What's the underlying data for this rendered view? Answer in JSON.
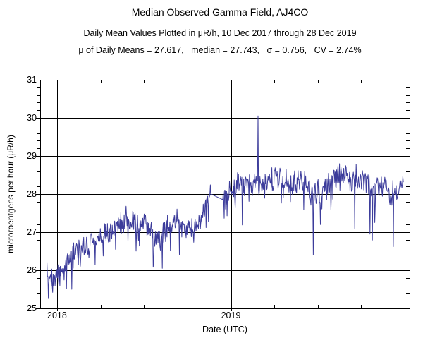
{
  "window": {
    "background": "#ffffff",
    "text_color": "#000000"
  },
  "header": {
    "title": "Median Observed Gamma Field, AJ4CO",
    "subtitle": "Daily Mean Values Plotted in μR/h, 10 Dec 2017 through 28 Dec 2019",
    "stats_line": "μ of Daily Means = 27.617,   median = 27.743,   σ = 0.756,   CV = 2.74%"
  },
  "chart_data": {
    "type": "line",
    "title": "Median Observed Gamma Field, AJ4CO",
    "subtitle": "Daily Mean Values Plotted in μR/h, 10 Dec 2017 through 28 Dec 2019",
    "xlabel": "Date (UTC)",
    "ylabel": "microroentgens per hour (μR/h)",
    "legend": "none",
    "grid": true,
    "stats": {
      "mu_of_daily_means": 27.617,
      "median": 27.743,
      "sigma": 0.756,
      "cv_percent": 2.74
    },
    "x_axis": {
      "range": [
        2017.903,
        2020.028
      ],
      "major_ticks": [
        {
          "value": 2018,
          "label": "2018"
        },
        {
          "value": 2019,
          "label": "2019"
        }
      ],
      "minor_tick_interval_years": 0.25,
      "gridlines": [
        2018,
        2019
      ]
    },
    "y_axis": {
      "range": [
        25,
        31
      ],
      "tick_labels": [
        25,
        26,
        27,
        28,
        29,
        30,
        31
      ],
      "minor_tick_interval": 0.2,
      "gridlines": [
        26,
        27,
        28,
        29,
        30
      ]
    },
    "series": {
      "name": "daily-mean-gamma",
      "color": "#3c3c9b",
      "t_start": 2017.942,
      "t_end": 2019.992,
      "n_points": 749,
      "trend_anchors": [
        [
          2017.942,
          26.0
        ],
        [
          2017.96,
          25.85
        ],
        [
          2017.985,
          25.75
        ],
        [
          2018.0,
          26.0
        ],
        [
          2018.01,
          25.85
        ],
        [
          2018.03,
          26.05
        ],
        [
          2018.06,
          26.25
        ],
        [
          2018.1,
          26.45
        ],
        [
          2018.14,
          26.55
        ],
        [
          2018.18,
          26.65
        ],
        [
          2018.22,
          26.8
        ],
        [
          2018.26,
          27.0
        ],
        [
          2018.3,
          26.95
        ],
        [
          2018.34,
          27.1
        ],
        [
          2018.38,
          27.2
        ],
        [
          2018.42,
          27.3
        ],
        [
          2018.46,
          27.25
        ],
        [
          2018.5,
          27.3
        ],
        [
          2018.54,
          27.0
        ],
        [
          2018.57,
          26.85
        ],
        [
          2018.6,
          26.9
        ],
        [
          2018.64,
          27.15
        ],
        [
          2018.68,
          27.3
        ],
        [
          2018.72,
          27.25
        ],
        [
          2018.76,
          27.05
        ],
        [
          2018.8,
          27.15
        ],
        [
          2018.84,
          27.55
        ],
        [
          2018.87,
          27.9
        ],
        [
          2018.885,
          28.0
        ],
        [
          2018.955,
          27.85
        ],
        [
          2018.975,
          28.05
        ],
        [
          2019.0,
          28.15
        ],
        [
          2019.06,
          28.25
        ],
        [
          2019.12,
          28.3
        ],
        [
          2019.18,
          28.3
        ],
        [
          2019.24,
          28.4
        ],
        [
          2019.3,
          28.35
        ],
        [
          2019.36,
          28.35
        ],
        [
          2019.42,
          28.35
        ],
        [
          2019.48,
          28.1
        ],
        [
          2019.52,
          27.9
        ],
        [
          2019.56,
          28.25
        ],
        [
          2019.62,
          28.45
        ],
        [
          2019.66,
          28.5
        ],
        [
          2019.7,
          28.35
        ],
        [
          2019.74,
          28.3
        ],
        [
          2019.78,
          28.35
        ],
        [
          2019.82,
          28.0
        ],
        [
          2019.86,
          28.25
        ],
        [
          2019.9,
          28.2
        ],
        [
          2019.94,
          28.0
        ],
        [
          2019.97,
          28.1
        ],
        [
          2019.992,
          28.2
        ]
      ],
      "noise": {
        "amplitude": 0.5,
        "dip_probability": 0.045,
        "dip_depth_min": 0.2,
        "dip_depth_max": 0.9,
        "seed": 20171210
      },
      "gaps": [
        [
          2018.885,
          2018.955
        ]
      ],
      "events": [
        [
          2017.975,
          25.42
        ],
        [
          2018.015,
          25.6
        ],
        [
          2018.555,
          26.25
        ],
        [
          2018.605,
          26.05
        ],
        [
          2019.155,
          30.05
        ],
        [
          2019.473,
          26.4
        ],
        [
          2019.515,
          27.2
        ],
        [
          2019.712,
          27.1
        ],
        [
          2019.8,
          26.95
        ],
        [
          2019.935,
          26.62
        ]
      ]
    }
  }
}
